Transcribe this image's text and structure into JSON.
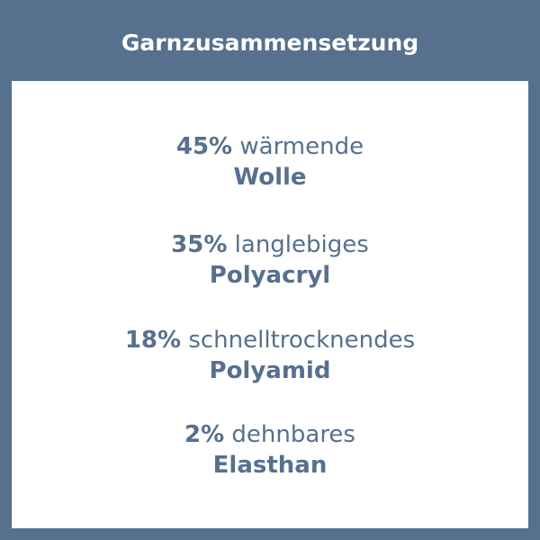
{
  "title": "Garnzusammensetzung",
  "colors": {
    "frame": "#56708e",
    "panel": "#ffffff",
    "text": "#56708e"
  },
  "items": [
    {
      "percent": "45%",
      "adjective": "wärmende",
      "material": "Wolle"
    },
    {
      "percent": "35%",
      "adjective": "langlebiges",
      "material": "Polyacryl"
    },
    {
      "percent": "18%",
      "adjective": "schnelltrocknendes",
      "material": "Polyamid"
    },
    {
      "percent": "2%",
      "adjective": "dehnbares",
      "material": "Elasthan"
    }
  ]
}
